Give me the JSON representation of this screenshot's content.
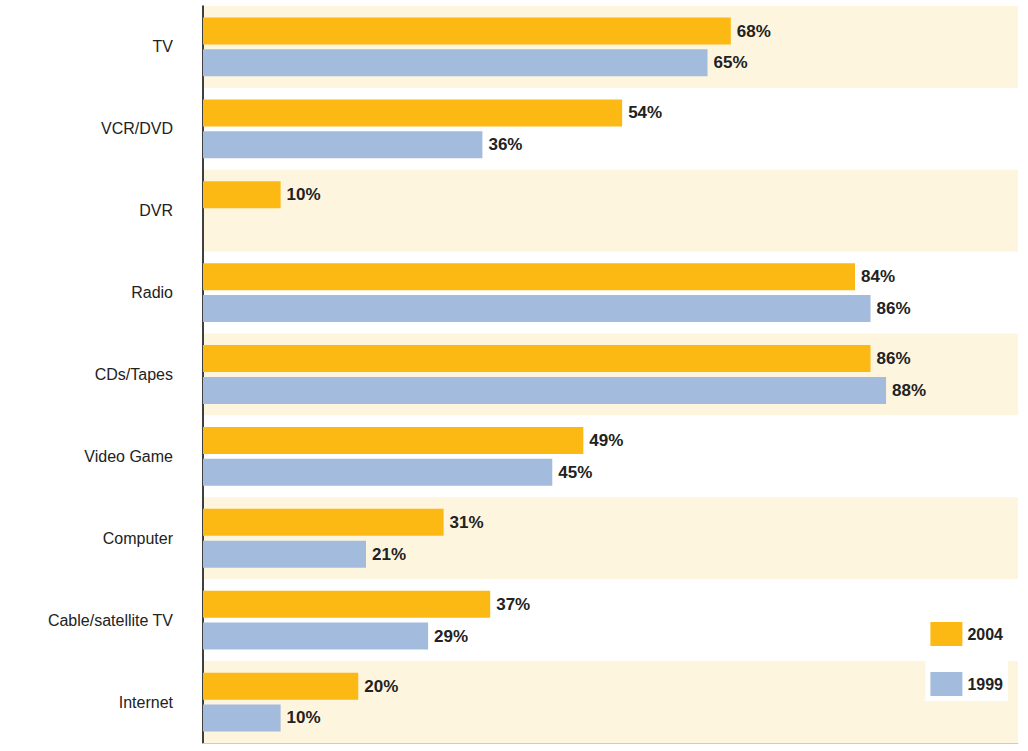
{
  "chart_data": {
    "type": "bar",
    "orientation": "horizontal",
    "categories": [
      "TV",
      "VCR/DVD",
      "DVR",
      "Radio",
      "CDs/Tapes",
      "Video Game",
      "Computer",
      "Cable/satellite TV",
      "Internet"
    ],
    "series": [
      {
        "name": "2004",
        "color": "#fdb913",
        "values": [
          68,
          54,
          10,
          84,
          86,
          49,
          31,
          37,
          20
        ],
        "value_labels": [
          "68%",
          "54%",
          "10%",
          "84%",
          "86%",
          "49%",
          "31%",
          "37%",
          "20%"
        ]
      },
      {
        "name": "1999",
        "color": "#a3bbdc",
        "values": [
          65,
          36,
          null,
          86,
          88,
          45,
          21,
          29,
          10
        ],
        "value_labels": [
          "65%",
          "36%",
          null,
          "86%",
          "88%",
          "45%",
          "21%",
          "29%",
          "10%"
        ]
      }
    ],
    "xlim": [
      0,
      105
    ],
    "data_labels": true,
    "tick_labels": "y",
    "grid": false,
    "legend": "lower right"
  }
}
